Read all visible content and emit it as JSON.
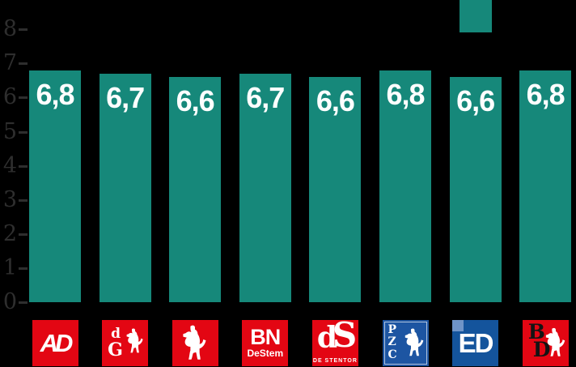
{
  "chart_data": {
    "type": "bar",
    "title": "",
    "categories": [
      "AD",
      "De Gelderlander",
      "Tubantia",
      "BN DeStem",
      "De Stentor",
      "PZC",
      "ED",
      "BD"
    ],
    "values": [
      6.8,
      6.7,
      6.6,
      6.7,
      6.6,
      6.8,
      6.6,
      6.8
    ],
    "value_labels": [
      "6,8",
      "6,7",
      "6,6",
      "6,7",
      "6,6",
      "6,8",
      "6,6",
      "6,8"
    ],
    "xlabel": "",
    "ylabel": "",
    "ylim": [
      0,
      8
    ],
    "yticks": [
      0,
      1,
      2,
      3,
      4,
      5,
      6,
      7,
      8
    ],
    "grid": false,
    "legend_position": "top-right",
    "bar_color": "#16887a",
    "value_label_color": "#ffffff",
    "axis_color": "#2e2e2e",
    "background_color": "#000000",
    "legend": {
      "swatch_color": "#16887a"
    }
  },
  "logos": [
    {
      "label": "AD",
      "text": "AD",
      "bg": "#e30613"
    },
    {
      "label": "De Gelderlander",
      "d": "d",
      "g": "G",
      "bg": "#e30613"
    },
    {
      "label": "Tubantia",
      "bg": "#e30613"
    },
    {
      "label": "BN DeStem",
      "top": "BN",
      "bottom": "DeStem",
      "bg": "#e30613"
    },
    {
      "label": "De Stentor",
      "d": "d",
      "s": "S",
      "bottom": "DE STENTOR",
      "bg": "#e30613"
    },
    {
      "label": "PZC",
      "p": "P",
      "z": "Z",
      "c": "C",
      "bg": "#1d55a2"
    },
    {
      "label": "ED",
      "text": "ED",
      "bg": "#14549c",
      "accent": "#6f94c8"
    },
    {
      "label": "BD",
      "b": "B",
      "d": "D",
      "bg": "#e30613"
    }
  ]
}
